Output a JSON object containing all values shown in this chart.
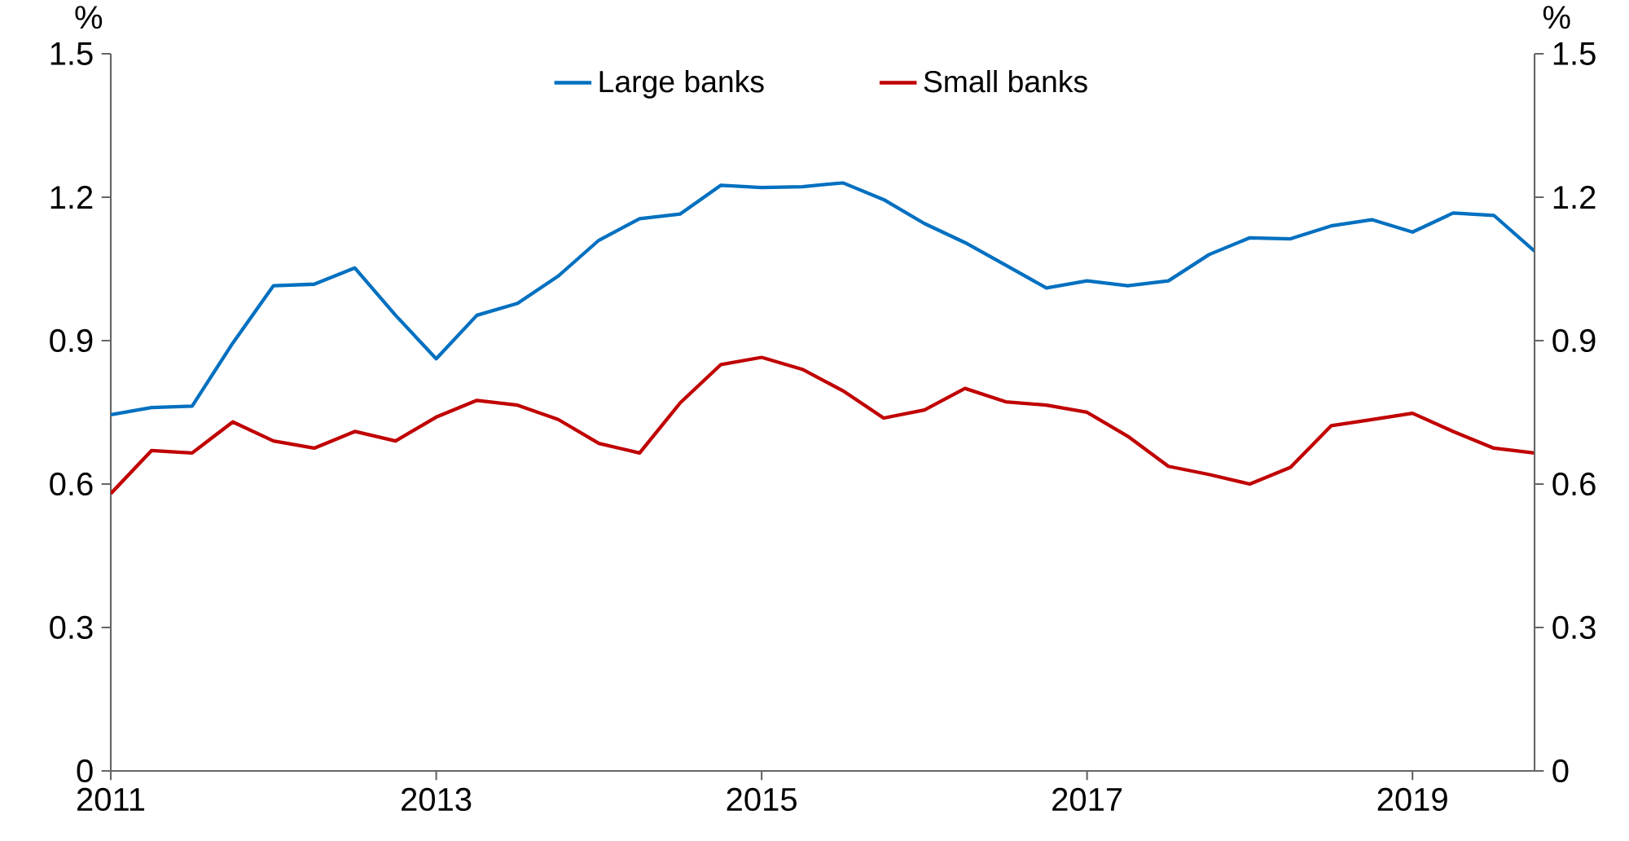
{
  "chart_data": {
    "type": "line",
    "ylabel": "%",
    "y2label": "%",
    "x": [
      2011.0,
      2011.25,
      2011.5,
      2011.75,
      2012.0,
      2012.25,
      2012.5,
      2012.75,
      2013.0,
      2013.25,
      2013.5,
      2013.75,
      2014.0,
      2014.25,
      2014.5,
      2014.75,
      2015.0,
      2015.25,
      2015.5,
      2015.75,
      2016.0,
      2016.25,
      2016.5,
      2016.75,
      2017.0,
      2017.25,
      2017.5,
      2017.75,
      2018.0,
      2018.25,
      2018.5,
      2018.75,
      2019.0,
      2019.25,
      2019.5,
      2019.75
    ],
    "series": [
      {
        "name": "Large banks",
        "color": "#0070c0",
        "values": [
          0.745,
          0.76,
          0.763,
          0.895,
          1.015,
          1.018,
          1.052,
          0.953,
          0.862,
          0.953,
          0.978,
          1.035,
          1.11,
          1.155,
          1.165,
          1.225,
          1.22,
          1.222,
          1.23,
          1.195,
          1.145,
          1.105,
          1.058,
          1.01,
          1.025,
          1.015,
          1.025,
          1.08,
          1.115,
          1.113,
          1.14,
          1.153,
          1.127,
          1.167,
          1.162,
          1.087
        ]
      },
      {
        "name": "Small banks",
        "color": "#c00000",
        "values": [
          0.58,
          0.67,
          0.665,
          0.73,
          0.69,
          0.675,
          0.71,
          0.69,
          0.74,
          0.775,
          0.765,
          0.735,
          0.685,
          0.665,
          0.77,
          0.85,
          0.865,
          0.84,
          0.795,
          0.738,
          0.755,
          0.8,
          0.772,
          0.765,
          0.75,
          0.7,
          0.637,
          0.62,
          0.6,
          0.635,
          0.722,
          0.735,
          0.748,
          0.71,
          0.675,
          0.665
        ]
      }
    ],
    "xlim": [
      2011,
      2019.75
    ],
    "xticks": [
      2011,
      2013,
      2015,
      2017,
      2019
    ],
    "ylim": [
      0,
      1.5
    ],
    "yticks": [
      0,
      0.3,
      0.6,
      0.9,
      1.2,
      1.5
    ],
    "y2lim": [
      0,
      1.5
    ],
    "y2ticks": [
      0,
      0.3,
      0.6,
      0.9,
      1.2,
      1.5
    ],
    "legend": "top",
    "grid": false,
    "marker": "none",
    "line_style": "solid"
  }
}
